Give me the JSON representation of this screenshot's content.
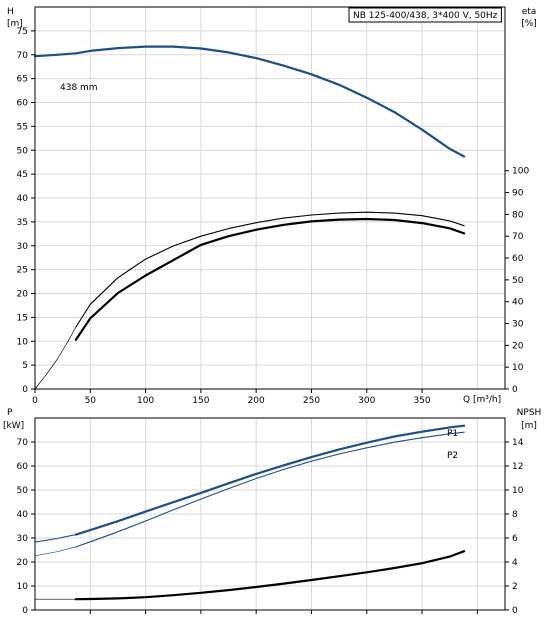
{
  "chart_data": [
    {
      "type": "line",
      "title": "NB 125-400/438, 3*400 V, 50Hz",
      "xlabel": "Q [m³/h]",
      "xlim": [
        0,
        425
      ],
      "xticks": [
        0,
        50,
        100,
        150,
        200,
        250,
        300,
        350
      ],
      "y_left": {
        "label_top": "H",
        "label_unit": "[m]",
        "ylim": [
          0,
          80
        ],
        "ticks": [
          0,
          5,
          10,
          15,
          20,
          25,
          30,
          35,
          40,
          45,
          50,
          55,
          60,
          65,
          70,
          75
        ]
      },
      "y_right": {
        "label_top": "eta",
        "label_unit": "[%]",
        "ylim": [
          0,
          175
        ],
        "ticks": [
          0,
          10,
          20,
          30,
          40,
          50,
          60,
          70,
          80,
          90,
          100
        ]
      },
      "grid": true,
      "annotations": [
        {
          "text": "438 mm"
        }
      ],
      "series": [
        {
          "name": "438 mm",
          "axis": "left",
          "color": "#1b4f8c",
          "style": "thick",
          "x": [
            0,
            20,
            37,
            50,
            75,
            100,
            125,
            150,
            175,
            200,
            225,
            250,
            275,
            300,
            325,
            350,
            375,
            388
          ],
          "values": [
            69.7,
            70.0,
            70.3,
            70.8,
            71.4,
            71.7,
            71.7,
            71.3,
            70.5,
            69.3,
            67.7,
            65.9,
            63.7,
            61.0,
            58.0,
            54.3,
            50.3,
            48.7
          ]
        },
        {
          "axis": "right",
          "color": "#000000",
          "style": "thin-ext",
          "x": [
            0,
            10,
            20,
            30,
            37
          ],
          "values": [
            0,
            6.5,
            13.5,
            22.0,
            28.4
          ]
        },
        {
          "axis": "right",
          "color": "#000000",
          "style": "thin",
          "x": [
            37,
            50,
            75,
            100,
            125,
            150,
            175,
            200,
            225,
            250,
            275,
            300,
            325,
            350,
            375,
            388
          ],
          "values": [
            28.4,
            38.8,
            51.0,
            59.5,
            65.5,
            70.0,
            73.5,
            76.2,
            78.3,
            79.7,
            80.6,
            81.0,
            80.6,
            79.4,
            77.0,
            74.8
          ]
        },
        {
          "axis": "right",
          "color": "#000000",
          "style": "thick",
          "x": [
            37,
            50,
            75,
            100,
            125,
            150,
            155,
            175,
            200,
            225,
            250,
            275,
            300,
            325,
            350,
            375,
            388
          ],
          "values": [
            22.6,
            32.4,
            44.0,
            52.0,
            59.0,
            66.0,
            66.8,
            70.0,
            73.0,
            75.2,
            76.8,
            77.6,
            77.9,
            77.4,
            76.0,
            73.6,
            71.3
          ]
        }
      ]
    },
    {
      "type": "line",
      "xlim": [
        0,
        425
      ],
      "y_left": {
        "label_top": "P",
        "label_unit": "[kW]",
        "ylim": [
          0,
          80
        ],
        "ticks": [
          0,
          10,
          20,
          30,
          40,
          50,
          60,
          70
        ]
      },
      "y_right": {
        "label_top": "NPSH",
        "label_unit": "[m]",
        "ylim": [
          0,
          16
        ],
        "ticks": [
          0,
          2,
          4,
          6,
          8,
          10,
          12,
          14
        ]
      },
      "grid": true,
      "series": [
        {
          "name": "P1",
          "axis": "left",
          "color": "#1b4f8c",
          "style": "thick-ext",
          "x": [
            0,
            20,
            37
          ],
          "values": [
            28.3,
            29.8,
            31.4
          ]
        },
        {
          "name": "P1",
          "axis": "left",
          "color": "#1b4f8c",
          "style": "thick",
          "x": [
            37,
            50,
            75,
            100,
            125,
            150,
            175,
            200,
            225,
            250,
            275,
            300,
            325,
            350,
            375,
            388
          ],
          "values": [
            31.4,
            33.3,
            37.0,
            41.0,
            44.9,
            48.8,
            52.8,
            56.7,
            60.3,
            63.7,
            66.9,
            69.7,
            72.3,
            74.3,
            76.1,
            76.8
          ]
        },
        {
          "name": "P2",
          "axis": "left",
          "color": "#1b4f8c",
          "style": "thin-ext",
          "x": [
            0,
            20,
            37
          ],
          "values": [
            22.6,
            24.3,
            26.3
          ]
        },
        {
          "name": "P2",
          "axis": "left",
          "color": "#1b4f8c",
          "style": "thin",
          "x": [
            37,
            50,
            75,
            100,
            125,
            150,
            175,
            200,
            225,
            250,
            275,
            300,
            325,
            350,
            375,
            388
          ],
          "values": [
            26.3,
            28.4,
            32.6,
            37.1,
            41.7,
            46.2,
            50.6,
            54.8,
            58.6,
            62.0,
            65.0,
            67.6,
            69.9,
            71.8,
            73.4,
            74.1
          ]
        },
        {
          "name": "NPSH",
          "axis": "right",
          "color": "#000000",
          "style": "thin-ext",
          "x": [
            0,
            20,
            37
          ],
          "values": [
            0.9,
            0.9,
            0.9
          ]
        },
        {
          "name": "NPSH",
          "axis": "right",
          "color": "#000000",
          "style": "thick",
          "x": [
            37,
            50,
            75,
            100,
            125,
            150,
            175,
            200,
            225,
            250,
            275,
            300,
            325,
            350,
            375,
            388
          ],
          "values": [
            0.9,
            0.92,
            0.97,
            1.07,
            1.23,
            1.43,
            1.66,
            1.92,
            2.2,
            2.5,
            2.82,
            3.14,
            3.5,
            3.9,
            4.45,
            4.9
          ]
        }
      ]
    }
  ],
  "legend_labels": {
    "p1": "P1",
    "p2": "P2"
  }
}
